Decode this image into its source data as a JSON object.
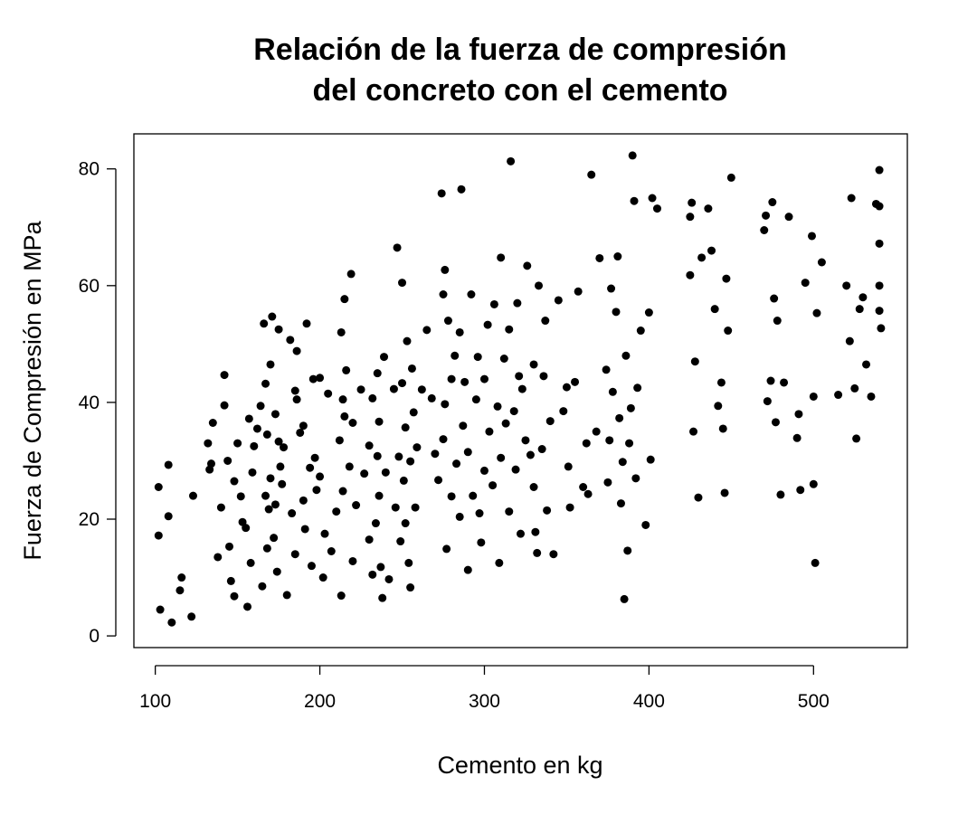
{
  "chart_data": {
    "type": "scatter",
    "title_line1": "Relación de la fuerza de compresión",
    "title_line2": "del concreto con el cemento",
    "xlabel": "Cemento en kg",
    "ylabel": "Fuerza de Compresión en MPa",
    "xlim": [
      87,
      557
    ],
    "ylim": [
      -2,
      86
    ],
    "xticks": [
      100,
      200,
      300,
      400,
      500
    ],
    "yticks": [
      0,
      20,
      40,
      60,
      80
    ],
    "grid": false,
    "legend": "none",
    "point_color": "#000000",
    "x": [
      102,
      102,
      103,
      108,
      108,
      110,
      115,
      116,
      122,
      123,
      132,
      133,
      134,
      135,
      138,
      140,
      142,
      142,
      144,
      145,
      146,
      148,
      148,
      150,
      152,
      153,
      155,
      156,
      157,
      158,
      159,
      160,
      162,
      164,
      165,
      166,
      167,
      167,
      168,
      168,
      169,
      170,
      170,
      171,
      172,
      173,
      173,
      174,
      175,
      175,
      176,
      177,
      178,
      180,
      182,
      183,
      185,
      185,
      186,
      186,
      188,
      190,
      190,
      191,
      192,
      194,
      195,
      196,
      197,
      198,
      200,
      200,
      202,
      203,
      205,
      207,
      210,
      212,
      213,
      213,
      214,
      214,
      215,
      215,
      216,
      218,
      219,
      220,
      220,
      222,
      225,
      227,
      230,
      230,
      232,
      232,
      234,
      235,
      235,
      236,
      236,
      237,
      238,
      239,
      240,
      242,
      245,
      246,
      247,
      248,
      249,
      250,
      250,
      251,
      252,
      252,
      253,
      254,
      255,
      255,
      256,
      257,
      258,
      259,
      262,
      265,
      268,
      270,
      272,
      274,
      275,
      275,
      276,
      276,
      277,
      278,
      280,
      280,
      282,
      283,
      285,
      285,
      286,
      287,
      288,
      290,
      290,
      292,
      293,
      295,
      296,
      297,
      298,
      300,
      300,
      302,
      303,
      305,
      306,
      308,
      309,
      310,
      310,
      312,
      313,
      315,
      315,
      316,
      318,
      319,
      320,
      321,
      322,
      323,
      325,
      326,
      328,
      330,
      330,
      331,
      332,
      333,
      335,
      336,
      337,
      338,
      340,
      342,
      345,
      348,
      350,
      351,
      352,
      355,
      357,
      360,
      362,
      363,
      365,
      368,
      370,
      374,
      375,
      376,
      377,
      378,
      380,
      381,
      382,
      383,
      384,
      385,
      386,
      387,
      388,
      389,
      390,
      391,
      392,
      393,
      395,
      398,
      400,
      401,
      402,
      405,
      425,
      425,
      426,
      427,
      428,
      430,
      432,
      436,
      438,
      440,
      442,
      444,
      445,
      446,
      447,
      448,
      450,
      470,
      471,
      472,
      474,
      475,
      476,
      477,
      478,
      480,
      482,
      485,
      490,
      491,
      492,
      495,
      499,
      500,
      500,
      501,
      502,
      505,
      515,
      520,
      522,
      523,
      525,
      526,
      528,
      530,
      532,
      535,
      538,
      540,
      540,
      540,
      540,
      540,
      541
    ],
    "y": [
      25.5,
      17.2,
      4.5,
      29.3,
      20.5,
      2.3,
      7.8,
      10.0,
      3.3,
      24.0,
      33.0,
      28.5,
      29.5,
      36.5,
      13.5,
      22.0,
      44.7,
      39.5,
      30.0,
      15.3,
      9.4,
      6.8,
      26.5,
      33.0,
      23.9,
      19.5,
      18.5,
      5.0,
      37.2,
      12.5,
      28.0,
      32.5,
      35.5,
      39.4,
      8.5,
      53.5,
      43.2,
      24.0,
      34.5,
      15.0,
      21.7,
      46.5,
      27.0,
      54.7,
      16.8,
      22.5,
      38.0,
      11.0,
      52.5,
      33.3,
      29.0,
      26.0,
      32.3,
      7.0,
      50.7,
      21.0,
      14.0,
      42.0,
      48.8,
      40.5,
      34.8,
      23.2,
      36.0,
      18.3,
      53.5,
      28.8,
      12.0,
      44.0,
      30.5,
      25.0,
      44.2,
      27.3,
      10.0,
      17.5,
      41.5,
      14.5,
      21.3,
      33.5,
      6.9,
      52.0,
      40.5,
      24.8,
      37.6,
      57.7,
      45.5,
      29.0,
      62.0,
      12.8,
      36.5,
      22.4,
      42.2,
      27.8,
      32.6,
      16.5,
      40.7,
      10.5,
      19.3,
      45.0,
      30.8,
      24.0,
      36.7,
      11.8,
      6.5,
      47.8,
      28.0,
      9.7,
      42.3,
      22.0,
      66.5,
      30.7,
      16.2,
      60.5,
      43.3,
      26.6,
      35.7,
      19.3,
      50.5,
      12.5,
      29.9,
      8.3,
      45.8,
      38.3,
      22.0,
      32.3,
      42.2,
      52.4,
      40.7,
      31.2,
      26.7,
      75.8,
      33.7,
      58.5,
      62.7,
      39.7,
      14.9,
      54.0,
      44.0,
      23.9,
      48.0,
      29.5,
      52.0,
      20.4,
      76.5,
      36.0,
      43.5,
      11.3,
      31.5,
      58.5,
      24.0,
      40.5,
      47.8,
      21.0,
      16.0,
      28.3,
      44.0,
      53.3,
      35.0,
      25.8,
      56.8,
      39.3,
      12.5,
      30.5,
      64.8,
      47.5,
      36.4,
      21.3,
      52.5,
      81.3,
      38.5,
      28.5,
      57.0,
      44.5,
      17.5,
      42.3,
      33.5,
      63.4,
      31.0,
      46.5,
      25.5,
      17.8,
      14.2,
      60.0,
      32.0,
      44.5,
      54.0,
      21.5,
      36.8,
      14.0,
      57.5,
      38.5,
      42.6,
      29.0,
      22.0,
      43.5,
      59.0,
      25.5,
      33.0,
      24.3,
      79.0,
      35.0,
      64.7,
      45.6,
      26.3,
      33.5,
      59.5,
      41.8,
      55.5,
      65.0,
      37.3,
      22.7,
      29.8,
      6.3,
      48.0,
      14.6,
      33.0,
      39.0,
      82.3,
      74.5,
      27.0,
      42.5,
      52.3,
      19.0,
      55.4,
      30.2,
      75.0,
      73.2,
      71.8,
      61.8,
      74.2,
      35.0,
      47.0,
      23.7,
      64.8,
      73.2,
      66.0,
      56.0,
      39.4,
      43.4,
      35.5,
      24.5,
      61.2,
      52.3,
      78.5,
      69.5,
      72.0,
      40.2,
      43.7,
      74.3,
      57.8,
      36.6,
      54.0,
      24.2,
      43.4,
      71.8,
      33.9,
      38.0,
      25.0,
      60.5,
      68.5,
      26.0,
      41.0,
      12.5,
      55.3,
      64.0,
      41.3,
      60.0,
      50.5,
      75.0,
      42.4,
      33.8,
      56.0,
      58.0,
      46.5,
      41.0,
      74.0,
      60.0,
      55.7,
      79.8,
      73.6,
      67.2,
      52.7
    ]
  }
}
